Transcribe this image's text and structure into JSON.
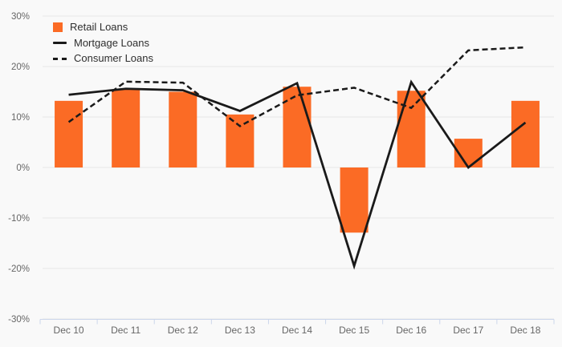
{
  "chart_data": {
    "type": "combo",
    "title": "",
    "categories": [
      "Dec 10",
      "Dec 11",
      "Dec 12",
      "Dec 13",
      "Dec 14",
      "Dec 15",
      "Dec 16",
      "Dec 17",
      "Dec 18"
    ],
    "series": [
      {
        "name": "Retail Loans",
        "type": "bar",
        "dash": "none",
        "color": "#fb6b25",
        "values": [
          13.2,
          15.4,
          15.0,
          10.5,
          16.0,
          -12.9,
          15.2,
          5.7,
          13.2
        ]
      },
      {
        "name": "Mortgage Loans",
        "type": "line",
        "dash": "solid",
        "color": "#1a1a1a",
        "values": [
          14.4,
          15.6,
          15.3,
          11.2,
          16.7,
          -19.5,
          16.9,
          0.0,
          8.9
        ]
      },
      {
        "name": "Consumer Loans",
        "type": "line",
        "dash": "dashed",
        "color": "#1a1a1a",
        "values": [
          9.0,
          17.0,
          16.8,
          8.2,
          14.3,
          15.8,
          11.8,
          23.2,
          23.8
        ]
      }
    ],
    "ylim": [
      -30,
      30
    ],
    "ytick_step": 10,
    "ytick_labels": [
      "30%",
      "20%",
      "10%",
      "0%",
      "-10%",
      "-20%",
      "-30%"
    ],
    "grid": true,
    "legend_position": "top-left",
    "xlabel": "",
    "ylabel": ""
  },
  "style_colors": {
    "background": "#f9f9f9",
    "gridline": "#e6e6e6",
    "axis_line": "#ccd6eb",
    "axis_label": "#666666",
    "legend_text": "#2e2e2e",
    "bar_fill": "#fb6b25",
    "line_stroke": "#1a1a1a"
  }
}
